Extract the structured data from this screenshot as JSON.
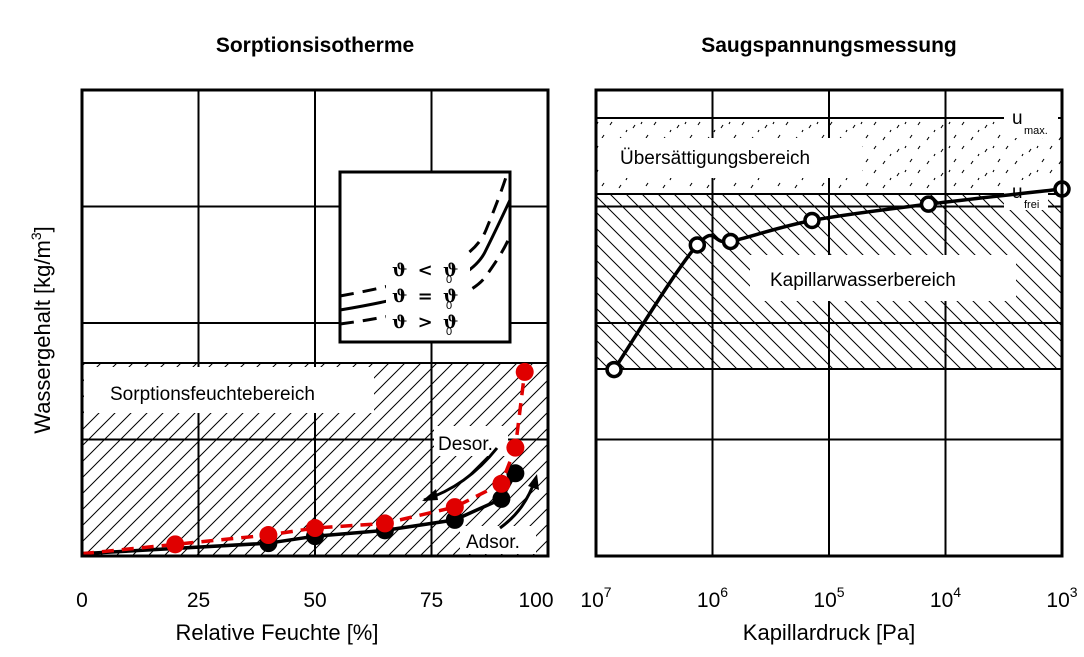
{
  "chart_data": [
    {
      "type": "line",
      "title": "Sorptionsisotherme",
      "xlabel": "Relative Feuchte [%]",
      "ylabel": "Wassergehalt [kg/m³]",
      "ylabel_main": "Wassergehalt [kg/m",
      "ylabel_sup": "3",
      "ylabel_end": "]",
      "xlim": [
        0,
        100
      ],
      "ylim": [
        0,
        4
      ],
      "x_ticks": [
        "0",
        "25",
        "50",
        "75",
        "100"
      ],
      "grid": true,
      "series": [
        {
          "color": "#000000",
          "line_style": "solid",
          "x": [
            0,
            40,
            50,
            65,
            80,
            90,
            93
          ],
          "y": [
            0.02,
            0.11,
            0.17,
            0.22,
            0.31,
            0.49,
            0.71
          ]
        },
        {
          "color": "#e00000",
          "line_style": "dashed",
          "x": [
            0,
            20,
            40,
            50,
            65,
            80,
            90,
            93,
            95
          ],
          "y": [
            0.02,
            0.1,
            0.18,
            0.24,
            0.28,
            0.42,
            0.62,
            0.93,
            1.58
          ]
        }
      ],
      "annotations": {
        "region": "Sorptionsfeuchtebereich",
        "desorption": "Desor.",
        "adsorption": "Adsor.",
        "inset_legend": [
          {
            "symbol": "ϑ",
            "op": "<",
            "ref": "ϑ",
            "sub": "0",
            "line_style": "dashed"
          },
          {
            "symbol": "ϑ",
            "op": "=",
            "ref": "ϑ",
            "sub": "0",
            "line_style": "solid"
          },
          {
            "symbol": "ϑ",
            "op": ">",
            "ref": "ϑ",
            "sub": "0",
            "line_style": "dashed"
          }
        ]
      }
    },
    {
      "type": "line",
      "title": "Saugspannungsmessung",
      "xlabel": "Kapillardruck [Pa]",
      "x_scale": "log",
      "x_reversed": true,
      "xlim": [
        10000000,
        1000
      ],
      "ylim": [
        0,
        4
      ],
      "x_ticks": [
        {
          "base": "10",
          "exp": "7"
        },
        {
          "base": "10",
          "exp": "6"
        },
        {
          "base": "10",
          "exp": "5"
        },
        {
          "base": "10",
          "exp": "4"
        },
        {
          "base": "10",
          "exp": "3"
        }
      ],
      "grid": true,
      "series": [
        {
          "color": "#000000",
          "marker": "open-circle",
          "x": [
            7000000,
            1350000,
            700000,
            140000,
            14000,
            1000
          ],
          "y": [
            1.6,
            2.67,
            2.7,
            2.88,
            3.02,
            3.15
          ]
        }
      ],
      "annotations": {
        "u_max": {
          "label": "u",
          "sub": "max.",
          "y": 3.77
        },
        "u_frei": {
          "label": "u",
          "sub": "frei",
          "y": 3.12
        },
        "supersaturation_region": "Übersättigungsbereich",
        "capillary_region": "Kapillarwasserbereich"
      }
    }
  ]
}
